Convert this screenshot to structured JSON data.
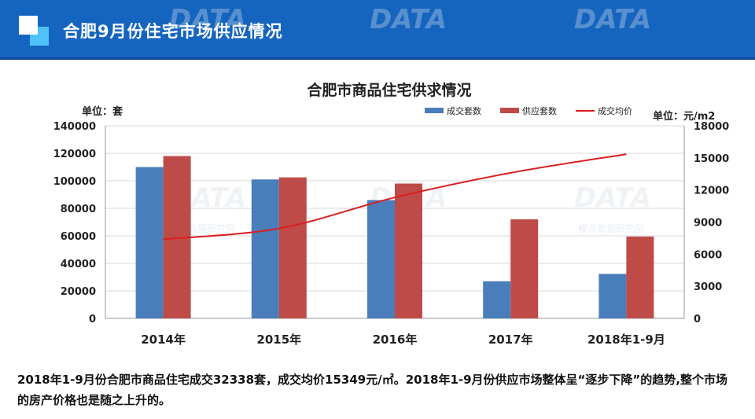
{
  "header": {
    "title": "合肥9月份住宅市场供应情况"
  },
  "chart": {
    "title": "合肥市商品住宅供求情况",
    "unit_left": "单位：套",
    "unit_right": "单位：元/m2"
  },
  "chart_data": {
    "type": "bar",
    "title": "合肥市商品住宅供求情况",
    "categories": [
      "2014年",
      "2015年",
      "2016年",
      "2017年",
      "2018年1-9月"
    ],
    "series": [
      {
        "name": "成交套数",
        "type": "bar",
        "axis": "left",
        "color": "#4a7ebb",
        "values": [
          110000,
          101000,
          86000,
          27000,
          32338
        ]
      },
      {
        "name": "供应套数",
        "type": "bar",
        "axis": "left",
        "color": "#be4b48",
        "values": [
          118000,
          102500,
          98000,
          72000,
          59500
        ]
      },
      {
        "name": "成交均价",
        "type": "line",
        "axis": "right",
        "color": "#d9201f",
        "values": [
          7400,
          8400,
          11300,
          13600,
          15349
        ]
      }
    ],
    "y_left": {
      "min": 0,
      "max": 140000,
      "ticks": [
        "0",
        "20000",
        "40000",
        "60000",
        "80000",
        "100000",
        "120000",
        "140000"
      ]
    },
    "y_right": {
      "min": 0,
      "max": 18000,
      "ticks": [
        "0",
        "3000",
        "6000",
        "9000",
        "12000",
        "15000",
        "18000"
      ]
    },
    "grid": true,
    "legend_position": "top-right"
  },
  "footer": {
    "text": "2018年1-9月份合肥市商品住宅成交32338套，成交均价15349元/㎡。2018年1-9月份供应市场整体呈“逐步下降”的趋势,整个市场的房产价格也是随之上升的。"
  },
  "watermark": {
    "brand": "DATA",
    "sub": "楼市数据研究院"
  }
}
